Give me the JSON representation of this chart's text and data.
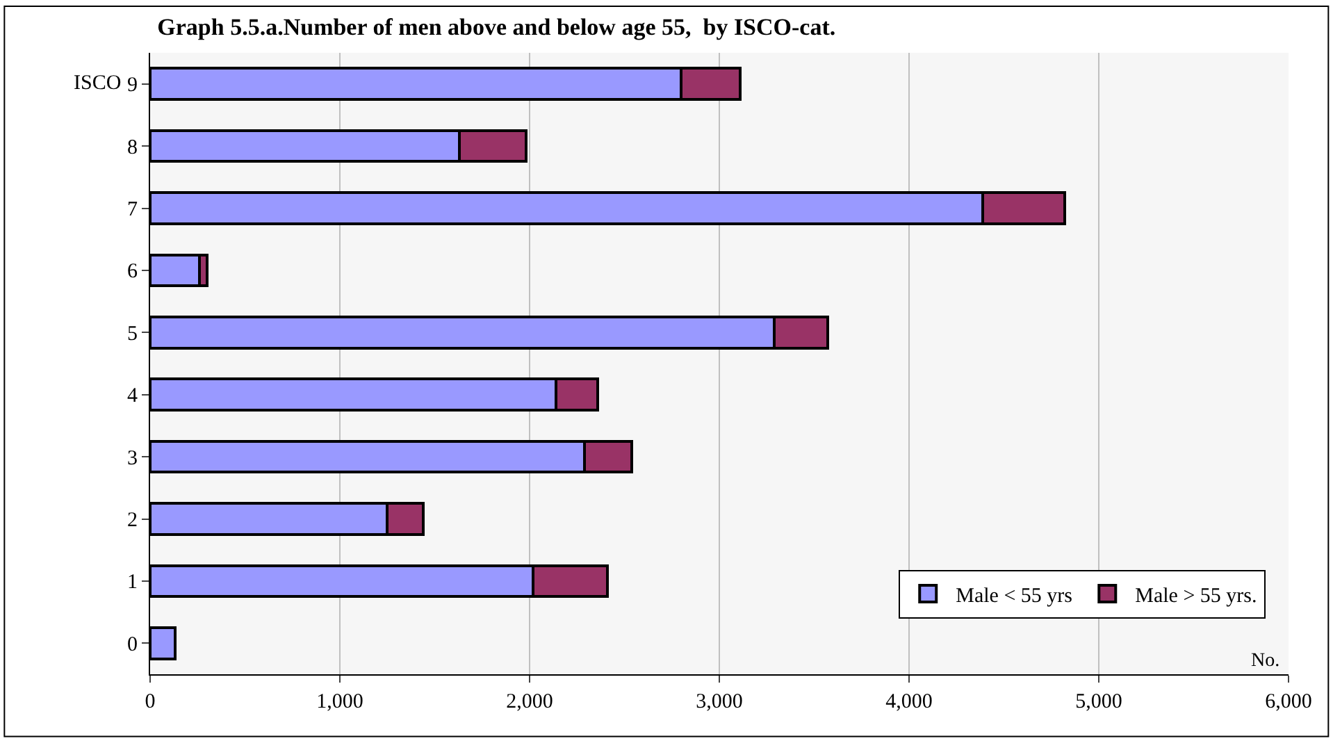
{
  "chart_data": {
    "type": "bar",
    "orientation": "horizontal",
    "stacked": true,
    "title": "Graph 5.5.a.Number of men above and below age 55,  by ISCO-cat.",
    "ylabel": "ISCO",
    "xlabel": "No.",
    "categories": [
      "9",
      "8",
      "7",
      "6",
      "5",
      "4",
      "3",
      "2",
      "1",
      "0"
    ],
    "series": [
      {
        "name": "Male < 55 yrs",
        "color": "#9999ff",
        "values": [
          2800,
          1630,
          4390,
          260,
          3290,
          2140,
          2290,
          1250,
          2020,
          130
        ]
      },
      {
        "name": "Male > 55 yrs.",
        "color": "#993366",
        "values": [
          310,
          350,
          430,
          40,
          280,
          220,
          250,
          190,
          390,
          null
        ]
      }
    ],
    "xlim": [
      0,
      6000
    ],
    "xticks": [
      {
        "value": 0,
        "label": "0"
      },
      {
        "value": 1000,
        "label": "1,000"
      },
      {
        "value": 2000,
        "label": "2,000"
      },
      {
        "value": 3000,
        "label": "3,000"
      },
      {
        "value": 4000,
        "label": "4,000"
      },
      {
        "value": 5000,
        "label": "5,000"
      },
      {
        "value": 6000,
        "label": "6,000"
      }
    ],
    "grid": "x",
    "legend": "bottom right"
  }
}
